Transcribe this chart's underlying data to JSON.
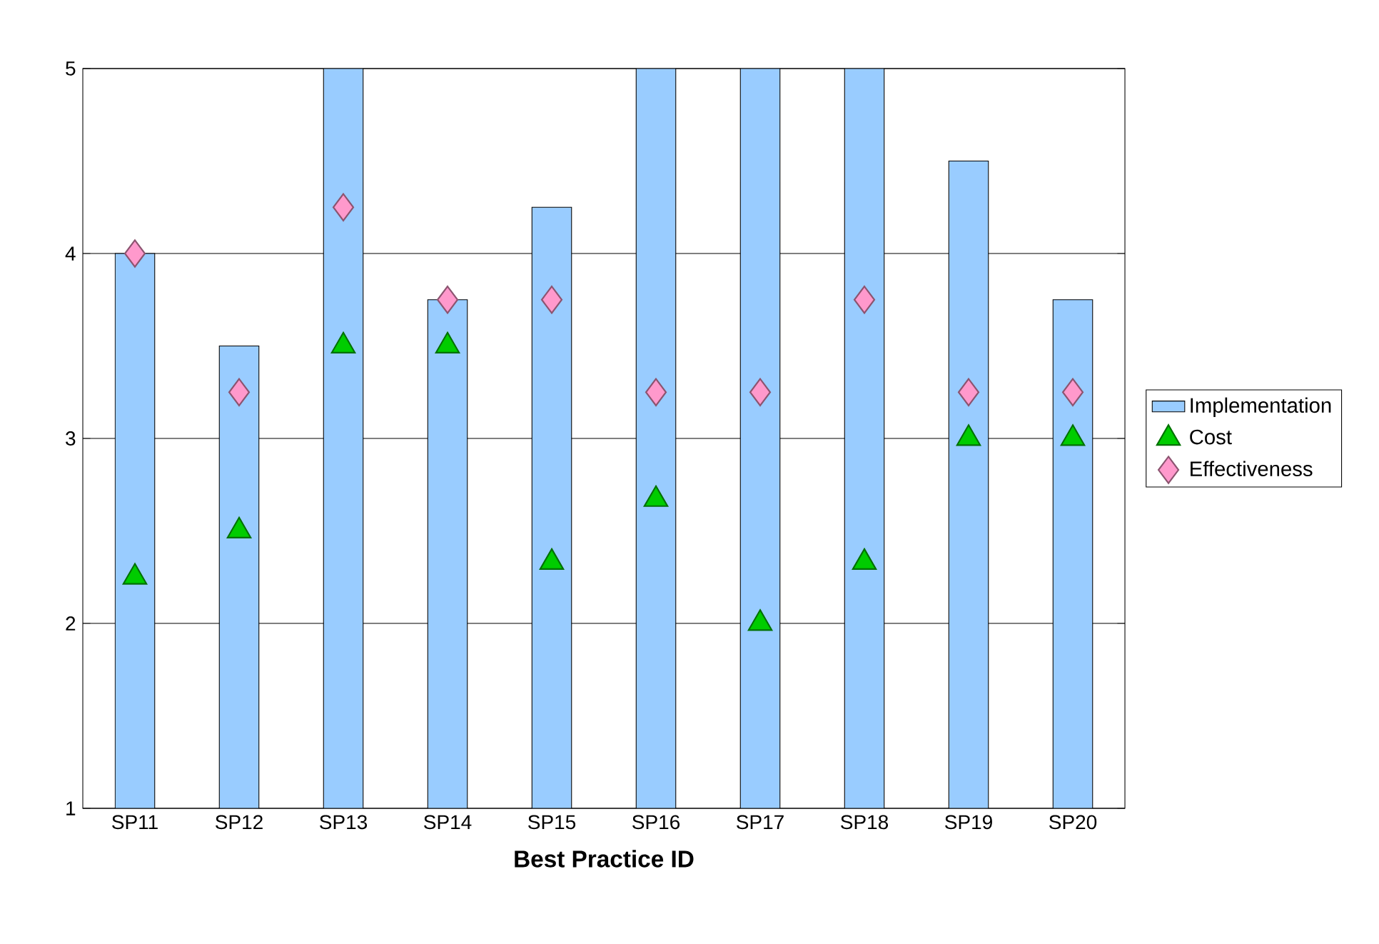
{
  "chart_data": {
    "type": "bar",
    "xlabel": "Best Practice ID",
    "categories": [
      "SP11",
      "SP12",
      "SP13",
      "SP14",
      "SP15",
      "SP16",
      "SP17",
      "SP18",
      "SP19",
      "SP20"
    ],
    "series": [
      {
        "name": "Implementation",
        "color": "#99ccff",
        "values": [
          4.0,
          3.5,
          5,
          3.75,
          4.25,
          5,
          5,
          5,
          4.5,
          3.75
        ]
      },
      {
        "name": "Cost",
        "type": "scatter",
        "marker": "triangle",
        "color": "#00cc00",
        "values": [
          2.25,
          2.5,
          3.5,
          3.5,
          2.33,
          2.67,
          2.0,
          2.33,
          3.0,
          3.0
        ]
      },
      {
        "name": "Effectiveness",
        "type": "scatter",
        "marker": "diamond",
        "color": "#ff99cc",
        "values": [
          4.0,
          3.25,
          4.25,
          3.75,
          3.75,
          3.25,
          3.25,
          3.75,
          3.25,
          3.25
        ]
      }
    ],
    "ylim": [
      1,
      5
    ],
    "yticks": [
      1,
      2,
      3,
      4,
      5
    ],
    "grid": "y",
    "legend": "right"
  }
}
